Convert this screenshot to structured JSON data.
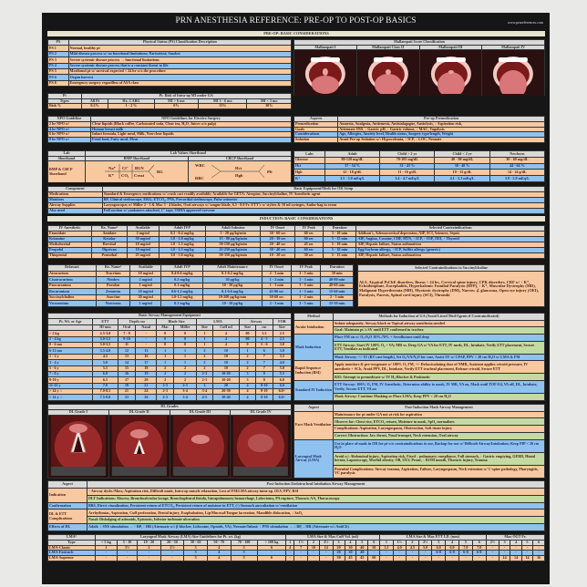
{
  "header": {
    "title": "PRN ANESTHESIA REFERENCE: PRE-OP TO POST-OP BASICS",
    "url": "www.prnreferences.com",
    "preop_banner": "PRE-OP: BASIC CONSIDERATIONS",
    "induction_banner": "INDUCTION: BASIC CONSIDERATIONS"
  },
  "colors": {
    "orange": "#f8c9a0",
    "blue": "#8fc2ef",
    "green": "#c3dba3",
    "header": "#d8d8d8",
    "frame": "#161616"
  },
  "ps": {
    "headers": [
      "PS",
      "Physical Status (PS) Classification Description"
    ],
    "rows": [
      [
        "PS 1",
        "Normal, healthy pt"
      ],
      [
        "PS 2",
        "Mild disease process w/ no functional limitations; Parturient; Smoker"
      ],
      [
        "PS 3",
        "Severe systemic disease process → functional limitations"
      ],
      [
        "PS 4",
        "Severe systemic disease process that is a constant threat to life"
      ],
      [
        "PS 5",
        "Moribund pt w/ survival expected < 24 hr w/o the procedure"
      ],
      [
        "PS 6",
        "Organ harvest"
      ],
      [
        "PS E",
        "Emergency surgery regardless of ASA class"
      ]
    ]
  },
  "mallampati": {
    "title": "Mallampati Score Classification",
    "classes": [
      "Mallampati I",
      "Mallampati Class II",
      "Mallampati III",
      "Mallampati IV"
    ]
  },
  "mi": {
    "groups": [
      {
        "label": "Pt",
        "span": 1
      },
      {
        "label": "Pt. Risk of Intra-op MI under GA",
        "span": 5
      }
    ],
    "headers": [
      "Types",
      "All Pt",
      "Hx. CABG",
      "MI > 6 mo",
      "MI 3 - 6 mo",
      "MI < 3 mo"
    ],
    "rows": [
      [
        "Risk %",
        "0.2%",
        "1 - 2 %",
        "6%",
        "15%",
        "30%"
      ]
    ]
  },
  "npo": {
    "headers": [
      "NPO Guideline",
      "NPO Guidelines for Elective Surgery"
    ],
    "rows": [
      [
        "2 hr NPO w/",
        "Clear liquids (Black coffee, Carbonated soda, Clear tea, H₂O, Juices w/o pulp)"
      ],
      [
        "4 hr NPO w/",
        "Human breast milk"
      ],
      [
        "6 hr NPO w/",
        "Infant formula, Light meal, Milk, Non-clear liquids"
      ],
      [
        "8 hr NPO w/",
        "Fried food, Fatty meal, Meat"
      ]
    ]
  },
  "premed": {
    "headers": [
      "Aspects",
      "Pre-op Premedication"
    ],
    "rows": [
      [
        "Premedication",
        "Amnesia, Analgesia, Antiemesis, Antisialagogue, Anxiolysis, ↓ Aspiration risk,"
      ],
      [
        "Goals",
        "Attenuate SNS, ↑ Gastric pH, ↓ Gastric volume, ↓ MAC, Vagolysis"
      ],
      [
        "Considerations",
        "Age, Allergies, Anxiety level, Health status, Surgery type/length, Weight"
      ],
      [
        "Sedation",
        "Avoid Pre-op Sedation w/: Hypovolemia, ↑ ICP, ↓ LOC, Neonate"
      ]
    ],
    "rowColors": [
      "o",
      "o",
      "b",
      "o"
    ]
  },
  "labshort": {
    "col1a": "Lab",
    "col1b": "Shorthand",
    "title": "Lab Values Shorthand",
    "bmp_title": "BMP Shorthand",
    "cbcp_title": "CBCP Shorthand",
    "label": "BMP & CBCP Shorthand",
    "bmp": {
      "na": "Na⁺",
      "cl": "Cl⁻",
      "bun": "BUN",
      "k": "K⁺",
      "co2": "CO₂",
      "creat": "Creat",
      "bg": "BG"
    },
    "cbcp": {
      "wbc": "WBC",
      "rbc": "RBC",
      "hct": "Hct",
      "hgb": "Hgb",
      "plt": "Plt"
    }
  },
  "labs": {
    "headers": [
      "Labs",
      "Adult",
      "Child > 2 yr",
      "Child < 2 yr",
      "Newborn"
    ],
    "rows": [
      [
        "Glucose",
        "80-120 mg/dL",
        "70-105 mg/dL",
        "40 - 90 mg/dL",
        "30 - 60 mg/dL"
      ],
      [
        "Hct",
        "37 - 54 %",
        "31 - 43 %",
        "30 - 40 %",
        "44 - 64 %"
      ],
      [
        "Hgb",
        "12 - 18 g/dL",
        "11 - 16 g/dL",
        "10 - 15 g/dL",
        "14 - 24 g/dL"
      ],
      [
        "K⁺",
        "3.5 - 5.0 mEq/L",
        "3.4 - 4.7 mEq/L",
        "4.1 - 5.3 mEq/L",
        "3.9 - 5.9 mEq/L"
      ]
    ]
  },
  "equip": {
    "headers": [
      "Component",
      "Basic Equipment/Meds for OR Setup"
    ],
    "rows": [
      [
        "Medications",
        "Standard & Emergency medications w/ crash cart readily available; Available for GETA: Atropine, Succinylcholine, IV Anesthetic agent"
      ],
      [
        "Monitors",
        "BP, Clinical stethoscope, EKG, ETCO₂, PNS, Precordial stethoscope, Pulse oximeter"
      ],
      [
        "Airway Supplies",
        "Laryngoscopes w/ Miller 2 - 3 & Mac 3 - 4 blades, Oral airways w/ tongue blade, 6.5 - 8.0 Fr. ETT's w/ stylets & 10 ml syringes, Ambu-bag in room"
      ],
      [
        "Also need",
        "Full suction w/ yankauers attached, 1\" tape, OSHA approved eyewear"
      ]
    ]
  },
  "ivanes": {
    "headers": [
      "IV Anesthetic",
      "Rx. Name²",
      "Available",
      "Adult IVP",
      "Adult Infusion",
      "IV Onset",
      "IV Peak",
      "Duration",
      "Selected Contraindications"
    ],
    "rows": [
      [
        "Etomidate",
        "Amidate",
        "2 mg/ml",
        "0.2 - 0.4 mg/kg",
        "5 - 20 µg/kg/min",
        "30 - 60 sec",
        "60 sec",
        "3 - 10 min",
        "Addison's, Adrenocortical depression, AIP, SCI, Seizures, Sepsis"
      ],
      [
        "Ketamine",
        "Ketalar",
        "50 mg/ml",
        "1.0 - 2.0 mg/kg",
        "15 - 80 µg/kg/min",
        "20 - 30 sec",
        "60 sec",
        "5 - 15 min",
        "AIP, Angina, Cocaine, CHF, HTN, ↑ ICP, ↑ IOP, OEI, ↑ Thyroid"
      ],
      [
        "Methohexital",
        "Brevital",
        "10 mg/ml",
        "1.0 - 1.5 mg/kg",
        "50-150 µg/kg/min",
        "20 - 40 sec",
        "45 sec",
        "5 - 10 min",
        "AIP, Hepatic failure, Status asthmaticus"
      ],
      [
        "Propofol",
        "Diprivan",
        "10 mg/ml",
        "1.0 - 2.5 mg/kg",
        "25-250 µg/kg/min",
        "30 - 40 sec",
        "60 sec",
        "5 - 10 min",
        "Egg/Soybean allergy, ↑ ICP, Sulfite allergy (generic)"
      ],
      [
        "Thiopental",
        "Pentothal",
        "25 mg/ml",
        "3.0 - 5.0 mg/kg",
        "50-350 µg/kg/min",
        "10 - 20 sec",
        "30 sec",
        "5 - 15 min",
        "AIP, Hepatic failure, Status asthmaticus"
      ]
    ]
  },
  "relax": {
    "headers": [
      "Relaxant",
      "Rx. Name²",
      "Available",
      "Adult IVP",
      "Adult Maintenance",
      "IV Onset",
      "IV Peak",
      "Duration"
    ],
    "rows": [
      [
        "Atracurium",
        "Tracrium",
        "10 mg/ml",
        "0.4-0.6 mg/kg",
        "0.1-0.2 mg/kg",
        "2 - 3 min",
        "3 - 5 min",
        "30 min"
      ],
      [
        "Cisatracurium",
        "Nimbex",
        "2 mg/ml",
        "0.2 mg/kg",
        "30 µg/kg",
        "1 - 2 min",
        "1 - 3 min",
        "40-80 min"
      ],
      [
        "Pancuronium",
        "Pavulon",
        "1 mg/ml",
        "0.1 mg/kg",
        "10 - 50 µg/kg",
        "1 - 3 min",
        "3 - 5 min",
        "40-60 min"
      ],
      [
        "Rocuronium",
        "Zemuron",
        "10 mg/ml",
        "0.6-1.2 mg/kg",
        "0.1-0.6 mg/kg",
        "45-90 sec",
        "1 - 3 min",
        "15-60 min"
      ],
      [
        "Succinylcholine",
        "Anectine",
        "20 mg/ml",
        "1.0-1.5 mg/kg",
        "10-200 µg/kg/min",
        "30-60 sec",
        "1 - 2 min",
        "2 - 5 min"
      ],
      [
        "Vecuronium",
        "Norcuron",
        "1 mg/ml",
        "0.1 mg/kg",
        "10 - 50 µg/kg",
        "2 - 3 min",
        "3 - 5 min",
        "25-30 min"
      ]
    ]
  },
  "sch": {
    "title": "Selected Contraindications to Succinylcholine",
    "text": "ALS, Atypical PsChE disorders, Burns > 24 hr., Cervical spine injury, CPK disorders, CRF w/ ↑ K⁺, Echothiophate, Encephalitis, Hyperkalemic Familial Paralysis (HFP), ↑ K⁺, Muscular Dystrophy (MD), Malignant Hyperthermia (MH), Myotonic dystrophy (DM), Narrow ∠ glaucoma, Open eye injury (OEI), Paralysis, Paresis, Spinal cord injury (SCI), Thrombi"
  },
  "airway": {
    "title": "Basic Airway Management Equipment",
    "groups": [
      {
        "label": "Pt. Wt. or Age",
        "span": 1
      },
      {
        "label": "ETT",
        "span": 1
      },
      {
        "label": "Depth cm",
        "span": 2
      },
      {
        "label": "Blade Size",
        "span": 2
      },
      {
        "label": "LMA",
        "span": 2
      },
      {
        "label": "Airway",
        "span": 2
      },
      {
        "label": "FOB",
        "span": 1
      }
    ],
    "headers": [
      "",
      "ID mm",
      "Oral",
      "Nasal",
      "Mac",
      "Miller",
      "Size",
      "Cuff ml",
      "Size",
      "cm",
      "Size"
    ],
    "rows": [
      [
        "< 2 kg",
        "2.5-3.0",
        "7 - 8",
        "-",
        "0",
        "0",
        "1",
        "4",
        "00",
        "3.5",
        "2.5"
      ],
      [
        "2 - 4 kg",
        "3.0-3.5",
        "9-10",
        "-",
        "0",
        "0",
        "1",
        "4",
        "00",
        "4 - 5",
        "2.5"
      ],
      [
        "0 - 6 mo",
        "3.0-3.5",
        "11",
        "-",
        "0",
        "0",
        "1",
        "4",
        "0",
        "5 - 6",
        "3.0"
      ],
      [
        "6-12 mo",
        "3.5-4.0",
        "12",
        "13",
        "1",
        "1",
        "2",
        "10",
        "1",
        "6",
        "3.0"
      ],
      [
        "1 - 2 y",
        "4.5",
        "13",
        "16",
        "1",
        "1",
        "2",
        "10",
        "2",
        "7",
        "3.5"
      ],
      [
        "3 - 4 y",
        "5.0",
        "14",
        "17",
        "1",
        "1",
        "2",
        "10",
        "2",
        "7",
        "4.0"
      ],
      [
        "5 - 6 y",
        "5.5",
        "15",
        "18",
        "2",
        "2",
        "2",
        "10",
        "2",
        "7",
        "5.0"
      ],
      [
        "7 - 8 y",
        "6.0",
        "16",
        "19",
        "2",
        "2",
        "2-3",
        "10-20",
        "3",
        "8",
        "5.5"
      ],
      [
        "9-10 y",
        "6.5",
        "17",
        "20",
        "2",
        "2",
        "2-3",
        "10-20",
        "3",
        "8",
        "6.0"
      ],
      [
        "11-13 y",
        "7.0",
        "18",
        "21",
        "2-3",
        "2-3",
        "3",
        "20",
        "4",
        "8-10",
        "6.0"
      ],
      [
        "> 14 y ♀",
        "7.0-8.5",
        "21",
        "24",
        "2-3",
        "3-4",
        "3-4",
        "20-30",
        "4",
        "8-10",
        "6.0+"
      ],
      [
        "> 14 y ♂",
        "7.5-9.0",
        "23",
        "26",
        "2-3",
        "3-4",
        "4-5",
        "30-40",
        "4",
        "8-10",
        "6.0+"
      ]
    ]
  },
  "methods": {
    "headers": [
      "Method",
      "Methods for Induction of GA (Avoid Listed Med/Agents if Contraindicated)"
    ],
    "groups": [
      {
        "label": "Awake Intubation",
        "color": "o",
        "items": [
          {
            "text": "Sedate adequately, Airway block or Topical airway anesthesia needed",
            "color": "o"
          },
          {
            "text": "Goal: Maintain pt.'s SV until ETT confirmed in trachea",
            "color": "g"
          }
        ]
      },
      {
        "label": "Mask Induction",
        "color": "b",
        "items": [
          {
            "text": "Place FM on w/ O₂:N₂O 30%:70% + Sevoflurane until deep",
            "color": "b"
          },
          {
            "text": "ETT Airway: Start IV 100% O₂ + VA; MR vs. Deep GA w/ VA for ETT, IV meds, DL, Intubate, Verify ETT placement, Secure ETT, Ventilate as indicated",
            "color": "g"
          },
          {
            "text": "Mask Airway: +/- IV (RT case length), Set O₂/VA/N₂O for case, Assist SV w/ CPAP, PPV < 20 cm H₂O w/ LMA & FM",
            "color": "b"
          }
        ]
      },
      {
        "label": "Rapid Sequence Induction (RSI)",
        "color": "o",
        "items": [
          {
            "text": "Apply monitors & pre-oxygenate w/ 100% O₂ FM, +/- Defasciculating dose of NMR, Assistant applies cricoid pressure, IV anesthetic + SCh, Avoid PPV, DL, Intubate, Verify ETT tracheal placement, Release cricoid, Secure ETT",
            "color": "o"
          },
          {
            "text": "RSI: Attempt to premedicate w/ IV H₂-Blocker & Prokinetic",
            "color": "g"
          }
        ]
      },
      {
        "label": "Standard IV Induction",
        "color": "b",
        "items": [
          {
            "text": "ETT Airway: 100% O₂ FM, IV Anesthetic, Determine ability to mask, IV MR, VA on, Mask until TOF 0/4, VA off, DL, Intubate, Verify, Secure ETT, VA on",
            "color": "b"
          },
          {
            "text": "Mask Airway: Continue Masking or Place LMA; Keep PPV < 20 cm H₂O",
            "color": "g"
          }
        ]
      }
    ]
  },
  "dl": {
    "title": "DL Grades",
    "grades": [
      "DL Grade I",
      "DL Grade II",
      "DL Grade III",
      "DL Grade IV"
    ]
  },
  "post": {
    "headers": [
      "Aspect",
      "Post-Induction Mask Airway Management"
    ],
    "groups": [
      {
        "label": "Face Mask Ventilation",
        "color": "o",
        "items": [
          {
            "text": "Maintenance for pt under GA not at risk for aspiration",
            "color": "o"
          },
          {
            "text": "Observe for: Chest rise, ETCO₂ return, Moisture in mask, SpO₂ normalizes",
            "color": "g"
          },
          {
            "text": "Complications: Aspiration, Laryngospasm, Obstruction, Soft tissue injury",
            "color": "o"
          },
          {
            "text": "Correct Obstruction: Jaw thrust, Nasal trumpet, Neck extension, Oral airway",
            "color": "g"
          }
        ]
      },
      {
        "label": "Laryngeal Mask Airway (LMA)",
        "color": "b",
        "items": [
          {
            "text": "Use in place of mask in OR for pt w/o contraindications to use, Backup for use w/ Difficult Airway/Intubation; Keep PIP < 20 cm H₂O",
            "color": "b"
          },
          {
            "text": "Avoid w/: Abdominal injury, Aspiration risk, Fixed ↓ pulmonary compliance, Full stomach, ↓ Gastric emptying, GERD, Hiatal hernia, Laparoscopy, Morbid obesity, OB, OLV, Prone, ↓ ROM mouth, Thoracic injury, Trauma",
            "color": "g"
          },
          {
            "text": "Potential Complications: Airway trauma, Aspiration, Failure, Laryngospasm, Neck extension w/ C-spine pathology, Pharyngitis, VC paralysis",
            "color": "o"
          }
        ]
      }
    ]
  },
  "ett": {
    "headers": [
      "Aspect",
      "Post-Induction Endotracheal Intubation Airway Management"
    ],
    "groups": [
      {
        "label": "Indication",
        "color": "o",
        "items": [
          {
            "text": "↑ Airway dysfx./Mass, Aspiration risk, Difficult mask, Intra-op muscle relaxation, Loss of FM/LMA airway intra-op, OLV, PPV, RSI",
            "color": "o"
          },
          {
            "text": "DLT Indications: Abscess, Bronchoalveolar lavage, Bronchopleural fistula, Intrapulmonary hemorrhage, Lobectomy, PA rupture, Thoracic AA, Thoracoscopy",
            "color": "g"
          }
        ]
      },
      {
        "label": "Confirmation",
        "color": "b",
        "items": [
          {
            "text": "BBS, Direct visualization, Persistent return of ETCO₂, Persistent return of moisture in ETT, (-) Stomach auscultation w/ ventilation",
            "color": "b"
          }
        ]
      },
      {
        "label": "DL & ETT Complications",
        "color": "o",
        "items": [
          {
            "text": "Arrhythmias, Aspiration, Cuff perforation, Dental injury, Esophabation, Lip/Mucosal/Tongue laceration, Mandible dislocation, ↓ SaO₂",
            "color": "o"
          },
          {
            "text": "Nasal: Dislodging of adenoids, Epistaxis, Inferior turbinate ulceration",
            "color": "g"
          }
        ]
      },
      {
        "label": "Effects of DL",
        "color": "b",
        "items": [
          {
            "text": "Adult: ↑ SNS stimulation → ↑ BP, ↑ HR (Attenuate w/: β-blocker, Lidocaine, Opioids, VA); Neonate/Infant: ↑ PNS stimulation → ↓ BP, ↓ HR (Attenuate w/: AntiCh)",
            "color": "b"
          }
        ]
      }
    ]
  },
  "lma": {
    "groups": [
      {
        "label": "LMA³",
        "span": 1
      },
      {
        "label": "Laryngeal Mask Airway (LMA) Size Guidelines for Pt. wt. (kg)",
        "span": 8
      },
      {
        "label": "LMA Size & Max Cuff Vol. (ml)",
        "span": 8
      },
      {
        "label": "LMA Size & Max ETT I.D. (mm)",
        "span": 8
      },
      {
        "label": "Max OGT Fr.",
        "span": 5
      }
    ],
    "headers": [
      "Type",
      "< 5 kg",
      "5 - 10",
      "10 - 20",
      "20 - 30",
      "30 - 50",
      "50 - 70",
      "70 - 100",
      "> 100 kg",
      "1",
      "1½",
      "2",
      "2½",
      "3",
      "4",
      "5",
      "6",
      "1",
      "1½",
      "2",
      "2½",
      "3",
      "4",
      "5",
      "6",
      "2½",
      "3",
      "4",
      "5",
      "6"
    ],
    "rows": [
      [
        "LMA-Classic",
        "1",
        "1½",
        "2",
        "2½",
        "3",
        "4",
        "5",
        "6",
        "4",
        "7",
        "10",
        "14",
        "20",
        "30",
        "40",
        "50",
        "3.5",
        "4.0",
        "4.5",
        "5.0",
        "6.0",
        "6.0",
        "7.0",
        "7.0",
        "-",
        "-",
        "-",
        "-",
        "-"
      ],
      [
        "LMA-Fastrach",
        "-",
        "-",
        "-",
        "-",
        "3",
        "4",
        "5",
        "-",
        "-",
        "-",
        "-",
        "-",
        "20",
        "30",
        "40",
        "-",
        "-",
        "-",
        "-",
        "-",
        "6-8",
        "6-8",
        "6-8",
        "6-8",
        "-",
        "-",
        "-",
        "-",
        "-"
      ],
      [
        "LMA-Supreme",
        "-",
        "-",
        "-",
        "-",
        "3",
        "4",
        "5",
        "6",
        "-",
        "-",
        "-",
        "-",
        "30",
        "45",
        "45",
        "60",
        "-",
        "-",
        "-",
        "-",
        "-",
        "-",
        "-",
        "-",
        "-",
        "14",
        "14",
        "14",
        "16"
      ]
    ]
  }
}
